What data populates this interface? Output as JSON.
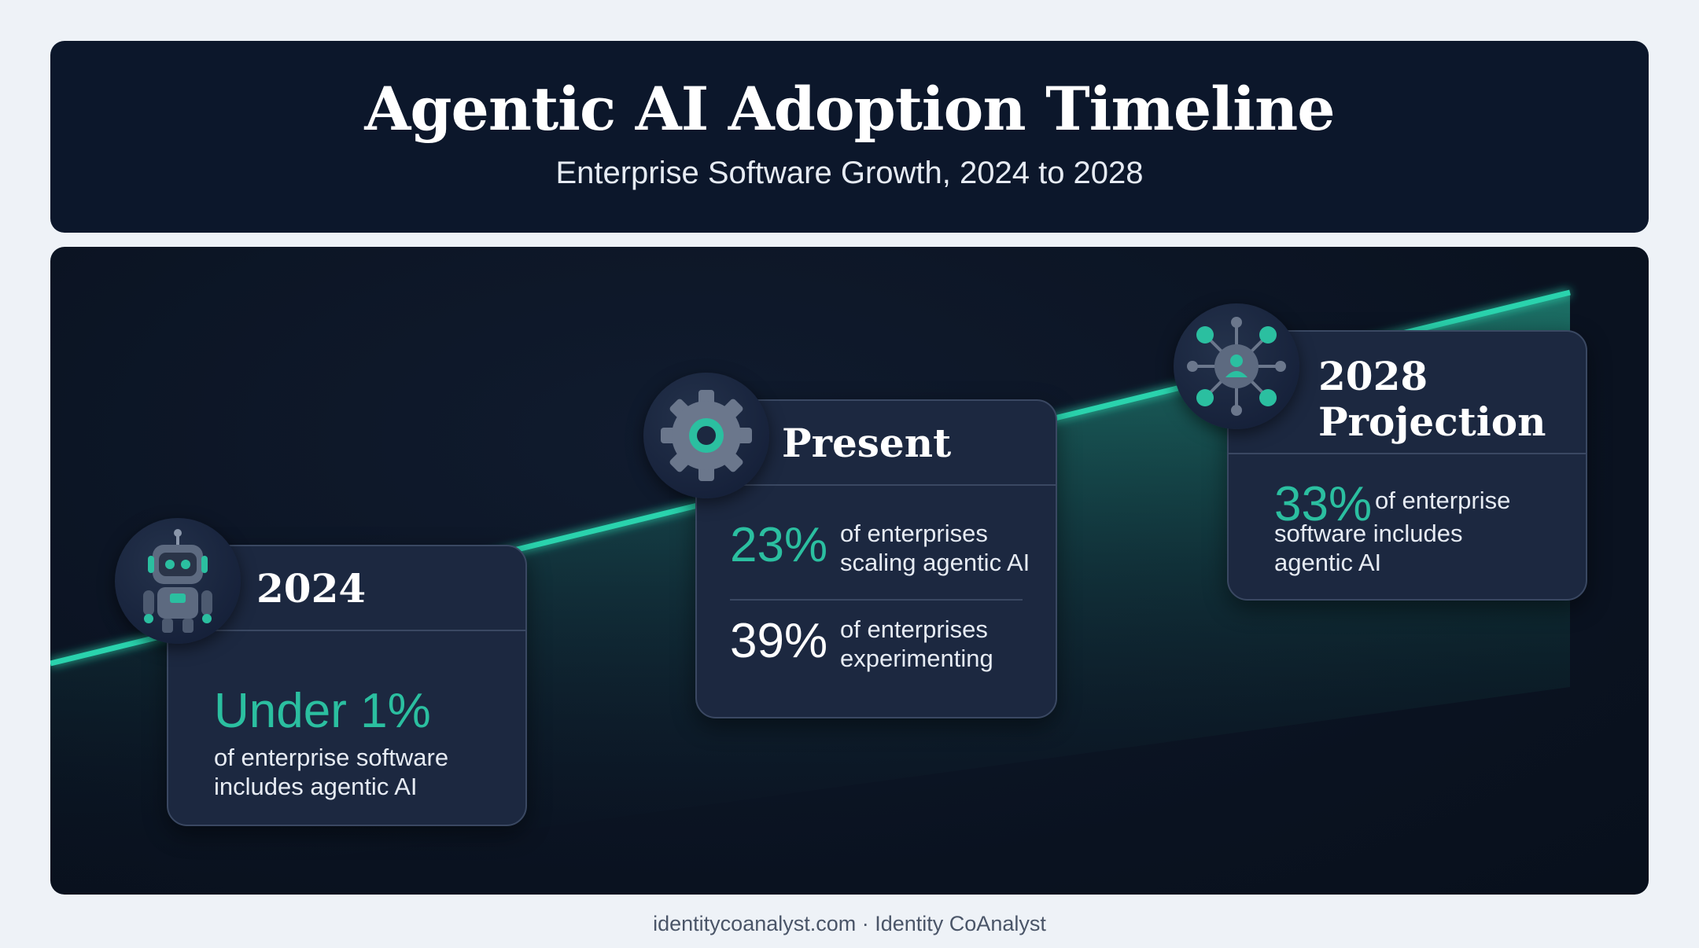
{
  "header": {
    "title": "Agentic AI Adoption Timeline",
    "subtitle": "Enterprise Software Growth, 2024 to 2028"
  },
  "colors": {
    "accent": "#2bbfa0",
    "card": "#1c2840",
    "background": "#0a1220"
  },
  "milestones": [
    {
      "title": "2024",
      "icon": "robot-icon",
      "stat": "Under 1%",
      "desc_line1": "of enterprise software",
      "desc_line2": "includes agentic AI"
    },
    {
      "title": "Present",
      "icon": "gear-icon",
      "stats": [
        {
          "value": "23%",
          "line1": "of enterprises",
          "line2": "scaling agentic AI"
        },
        {
          "value": "39%",
          "line1": "of enterprises",
          "line2": "experimenting"
        }
      ]
    },
    {
      "title_line1": "2028",
      "title_line2": "Projection",
      "icon": "network-user-icon",
      "stat": "33%",
      "desc_line1": "of enterprise",
      "desc_line2": "software includes",
      "desc_line3": "agentic AI"
    }
  ],
  "footer": "identitycoanalyst.com · Identity CoAnalyst"
}
